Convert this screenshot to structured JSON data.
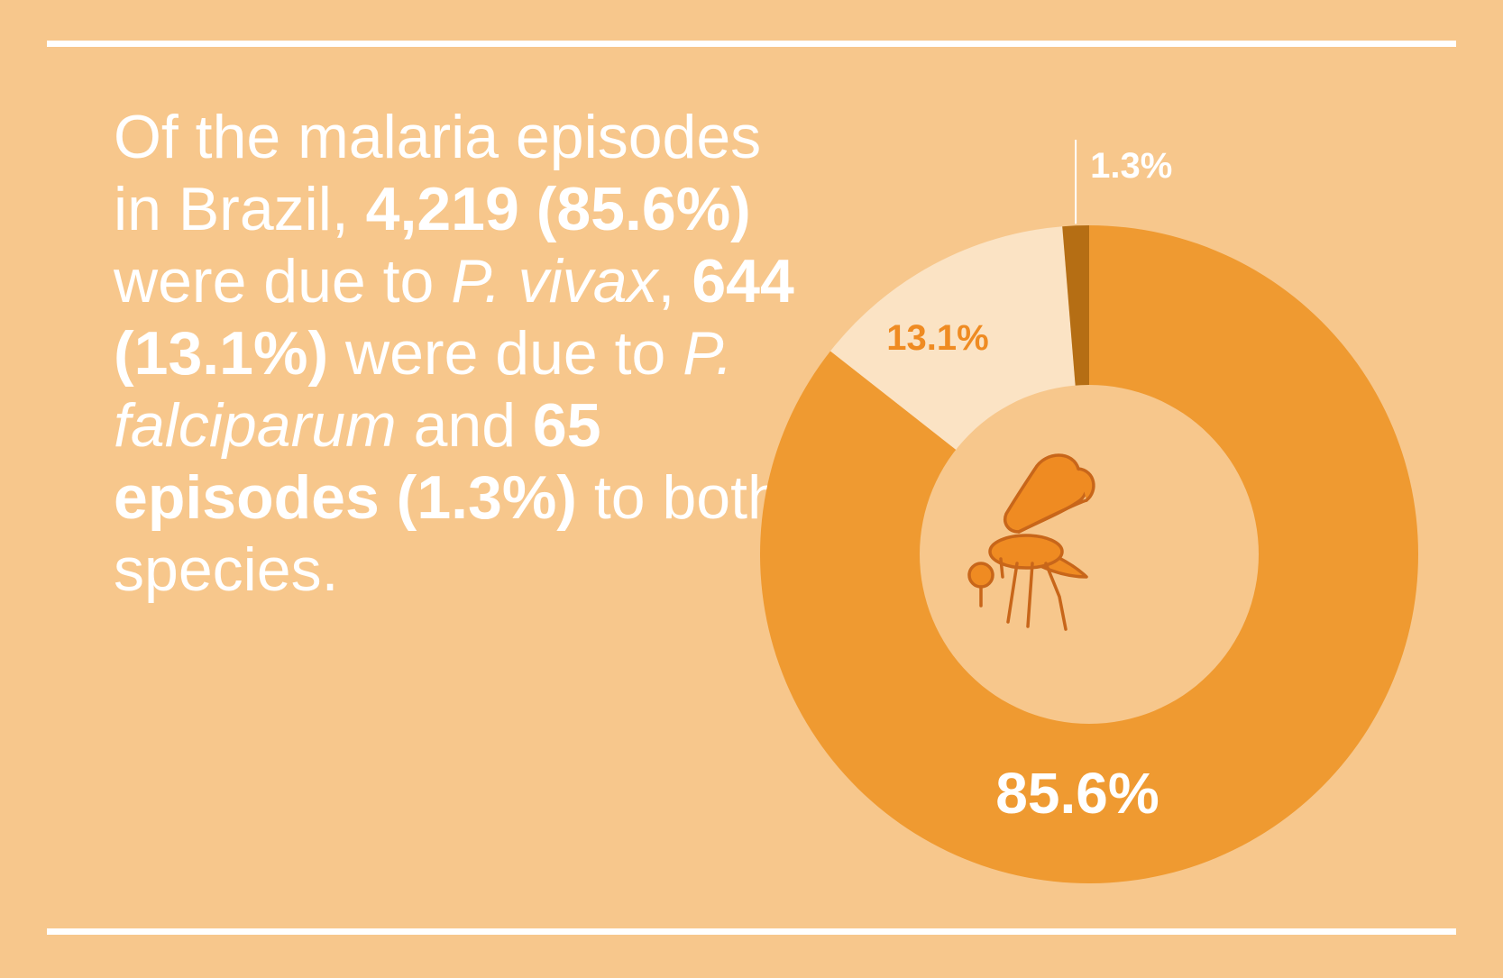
{
  "statement": {
    "t1": "Of the malaria episodes in Brazil, ",
    "b1": "4,219 (85.6%)",
    "t2": " were due to ",
    "i1": "P. vivax",
    "t3": ", ",
    "b2": "644 (13.1%)",
    "t4": " were due to ",
    "i2": "P. falciparum",
    "t5": " and ",
    "b3": "65 episodes (1.3%)",
    "t6": " to both species."
  },
  "colors": {
    "background": "#f7c78c",
    "vivax": "#ef9a31",
    "falciparum": "#fbe3c4",
    "both": "#b56e14",
    "inner": "#f7c78c",
    "icon_stroke": "#c8661a",
    "icon_fill": "#ef8b22",
    "rules": "#ffffff"
  },
  "icon": "mosquito-icon",
  "chart_data": {
    "type": "pie",
    "style": "donut",
    "labels": [
      "85.6%",
      "13.1%",
      "1.3%"
    ],
    "values": [
      85.6,
      13.1,
      1.3
    ],
    "series_meaning": [
      "P. vivax",
      "P. falciparum",
      "both species"
    ]
  }
}
